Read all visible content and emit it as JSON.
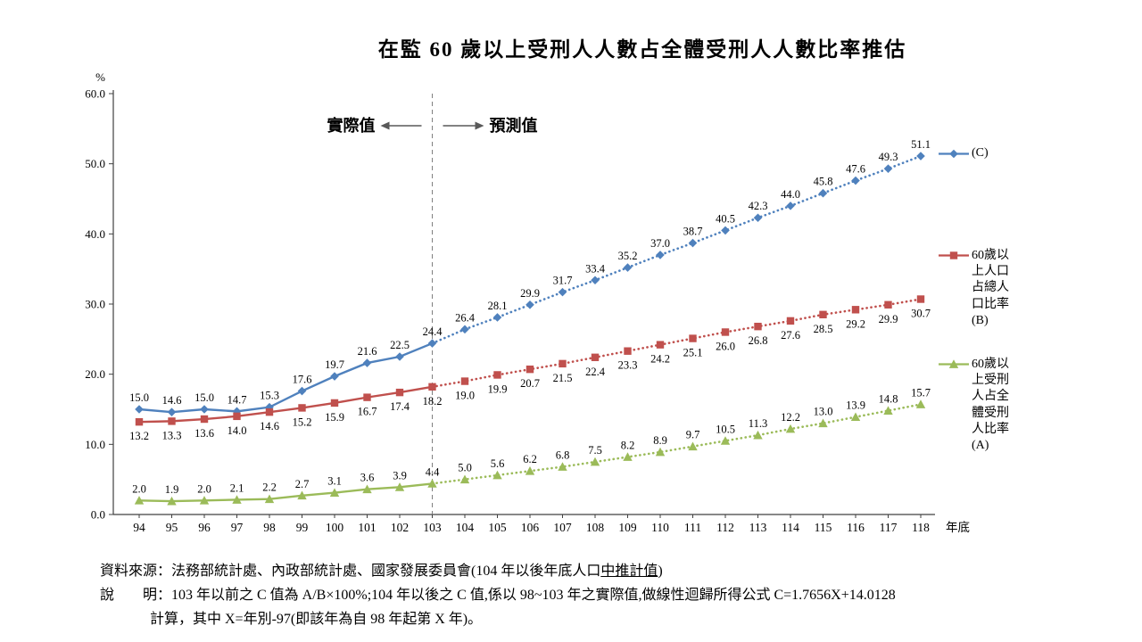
{
  "chart_data": {
    "type": "line",
    "title": "在監 60 歲以上受刑人人數占全體受刑人人數比率推估",
    "y_axis_label": "%",
    "x_axis_label": "年底",
    "ylim": [
      0,
      60
    ],
    "y_ticks": [
      "0.0",
      "10.0",
      "20.0",
      "30.0",
      "40.0",
      "50.0",
      "60.0"
    ],
    "categories": [
      94,
      95,
      96,
      97,
      98,
      99,
      100,
      101,
      102,
      103,
      104,
      105,
      106,
      107,
      108,
      109,
      110,
      111,
      112,
      113,
      114,
      115,
      116,
      117,
      118
    ],
    "actual_until": 103,
    "divider_annotation": {
      "left": "實際值",
      "right": "預測值"
    },
    "legend_position": "right",
    "grid": false,
    "series": [
      {
        "name": "C",
        "legend_label": "(C)",
        "color": "#4F81BD",
        "marker": "diamond",
        "label_position": "above",
        "values": [
          15.0,
          14.6,
          15.0,
          14.7,
          15.3,
          17.6,
          19.7,
          21.6,
          22.5,
          24.4,
          26.4,
          28.1,
          29.9,
          31.7,
          33.4,
          35.2,
          37.0,
          38.7,
          40.5,
          42.3,
          44.0,
          45.8,
          47.6,
          49.3,
          51.1
        ]
      },
      {
        "name": "B",
        "legend_label": "60歲以上人口占總人口比率(B)",
        "color": "#C0504D",
        "marker": "square",
        "label_position": "below",
        "values": [
          13.2,
          13.3,
          13.6,
          14.0,
          14.6,
          15.2,
          15.9,
          16.7,
          17.4,
          18.2,
          19.0,
          19.9,
          20.7,
          21.5,
          22.4,
          23.3,
          24.2,
          25.1,
          26.0,
          26.8,
          27.6,
          28.5,
          29.2,
          29.9,
          30.7
        ]
      },
      {
        "name": "A",
        "legend_label": "60歲以上受刑人占全體受刑人比率(A)",
        "color": "#9BBB59",
        "marker": "triangle",
        "label_position": "above",
        "values": [
          2.0,
          1.9,
          2.0,
          2.1,
          2.2,
          2.7,
          3.1,
          3.6,
          3.9,
          4.4,
          5.0,
          5.6,
          6.2,
          6.8,
          7.5,
          8.2,
          8.9,
          9.7,
          10.5,
          11.3,
          12.2,
          13.0,
          13.9,
          14.8,
          15.7
        ]
      }
    ]
  },
  "footer": {
    "source_prefix": "資料來源：法務部統計處、內政部統計處、國家發展委員會(104 年以後年底人口",
    "source_underline": "中推計值",
    "source_suffix": ")",
    "note_line1": "說　　明：103 年以前之 C 值為 A/B×100%;104 年以後之 C 值,係以 98~103 年之實際值,做線性迴歸所得公式 C=1.7656X+14.0128",
    "note_line2": "計算，其中 X=年別-97(即該年為自 98 年起第 X 年)。"
  }
}
